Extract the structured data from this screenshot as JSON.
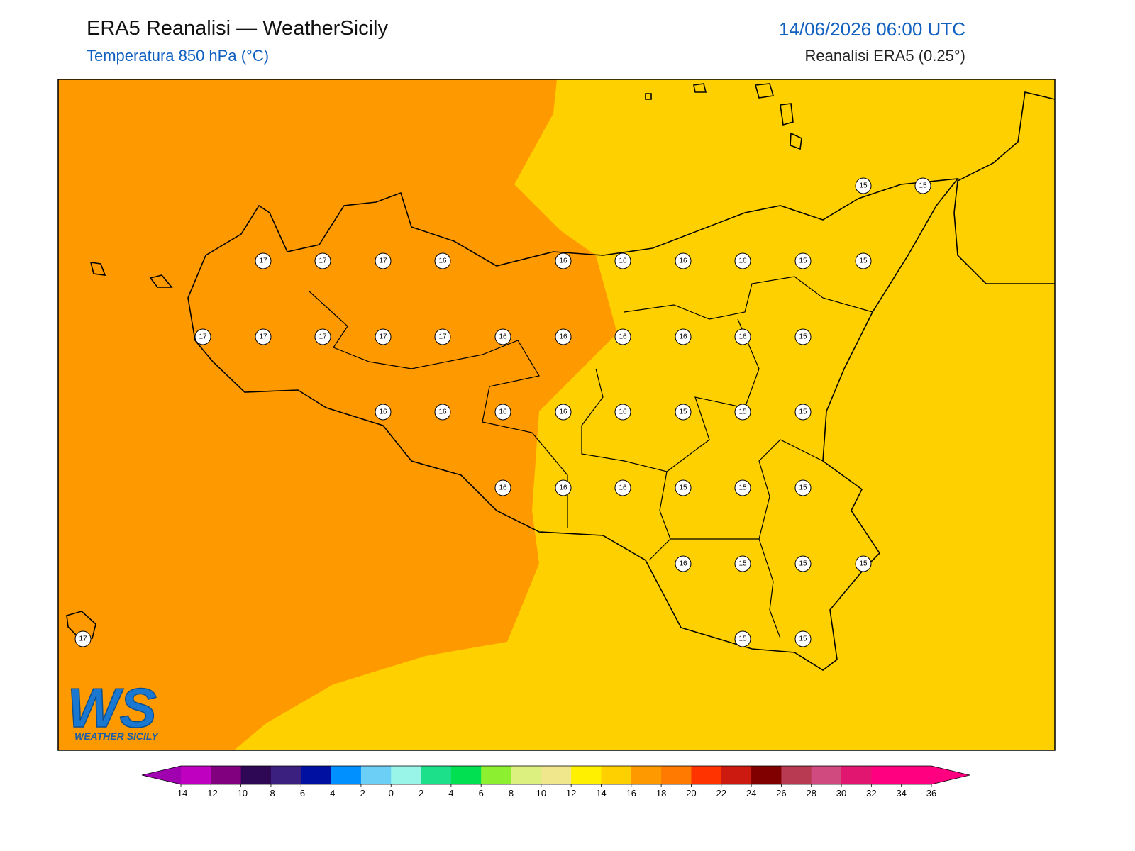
{
  "header": {
    "title": "ERA5 Reanalisi — WeatherSicily",
    "subtitle": "Temperatura 850 hPa (°C)",
    "datetime": "14/06/2026 06:00 UTC",
    "source": "Reanalisi ERA5 (0.25°)"
  },
  "logo": {
    "mark": "WS",
    "text": "WEATHER SICILY"
  },
  "grid_values": [
    15,
    15,
    17,
    17,
    17,
    16,
    16,
    16,
    16,
    16,
    15,
    15,
    17,
    17,
    17,
    17,
    17,
    16,
    16,
    16,
    16,
    16,
    15,
    16,
    16,
    16,
    16,
    16,
    15,
    15,
    15,
    16,
    16,
    16,
    15,
    15,
    15,
    16,
    15,
    15,
    15,
    17,
    15,
    15
  ],
  "colorbar": {
    "ticks": [
      -14,
      -12,
      -10,
      -8,
      -6,
      -4,
      -2,
      0,
      2,
      4,
      6,
      8,
      10,
      12,
      14,
      16,
      18,
      20,
      22,
      24,
      26,
      28,
      30,
      32,
      34,
      36
    ],
    "colors": [
      "#c000c0",
      "#800080",
      "#2e0854",
      "#3b2080",
      "#0010a0",
      "#0090ff",
      "#6ccff6",
      "#98f5e8",
      "#1de08a",
      "#00e050",
      "#8cf030",
      "#dcf080",
      "#f0e68c",
      "#fff000",
      "#ffd000",
      "#ff9900",
      "#ff7a00",
      "#ff3300",
      "#cc1a10",
      "#800000",
      "#b83a52",
      "#d04a80",
      "#e01670",
      "#ff0080",
      "#ff0080"
    ],
    "under": "#a000b0",
    "over": "#ff0080"
  }
}
